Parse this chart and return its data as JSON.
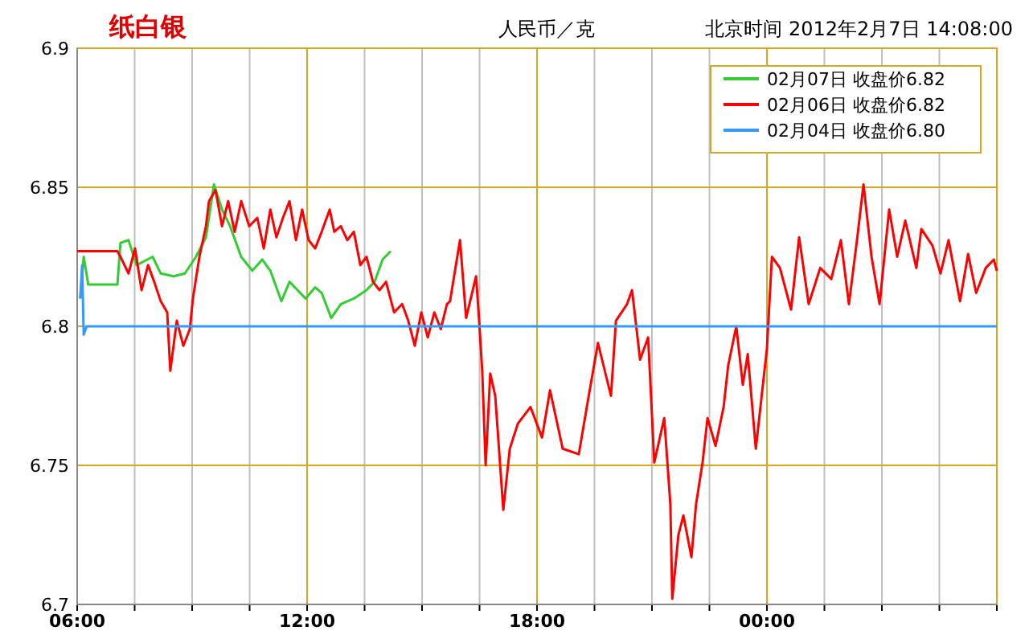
{
  "chart_data": {
    "type": "line",
    "title": "纸白银",
    "subtitle": "人民币／克",
    "annotations": [
      "北京时间 2012年2月7日 14:08:00"
    ],
    "xlim": [
      6,
      30
    ],
    "ylim": [
      6.7,
      6.9
    ],
    "xticks": [
      {
        "value": 6,
        "label": "06:00"
      },
      {
        "value": 7.5,
        "label": null
      },
      {
        "value": 9,
        "label": null
      },
      {
        "value": 10.5,
        "label": null
      },
      {
        "value": 12,
        "label": "12:00"
      },
      {
        "value": 13.5,
        "label": null
      },
      {
        "value": 15,
        "label": null
      },
      {
        "value": 16.5,
        "label": null
      },
      {
        "value": 18,
        "label": "18:00"
      },
      {
        "value": 19.5,
        "label": null
      },
      {
        "value": 21,
        "label": null
      },
      {
        "value": 22.5,
        "label": null
      },
      {
        "value": 24,
        "label": "00:00"
      },
      {
        "value": 25.5,
        "label": null
      },
      {
        "value": 27,
        "label": null
      },
      {
        "value": 28.5,
        "label": null
      },
      {
        "value": 30,
        "label": null
      }
    ],
    "yticks": [
      6.7,
      6.75,
      6.8,
      6.85,
      6.9
    ],
    "grid": true,
    "legend": "top right",
    "marker": "none",
    "line_style": "solid",
    "series": [
      {
        "name": "02月07日 收盘价6.82",
        "color": "#33cc33",
        "x": [
          6.08,
          6.17,
          6.29,
          7.05,
          7.13,
          7.34,
          7.55,
          7.97,
          8.18,
          8.52,
          8.81,
          9.1,
          9.36,
          9.57,
          9.78,
          9.99,
          10.28,
          10.57,
          10.83,
          11.04,
          11.33,
          11.54,
          11.75,
          11.96,
          12.21,
          12.38,
          12.63,
          12.88,
          13.22,
          13.55,
          13.76,
          13.97,
          14.18
        ],
        "values": [
          6.81,
          6.825,
          6.815,
          6.815,
          6.83,
          6.831,
          6.822,
          6.825,
          6.819,
          6.818,
          6.819,
          6.825,
          6.832,
          6.851,
          6.842,
          6.836,
          6.825,
          6.82,
          6.824,
          6.82,
          6.809,
          6.816,
          6.813,
          6.81,
          6.814,
          6.812,
          6.803,
          6.808,
          6.81,
          6.813,
          6.816,
          6.824,
          6.827
        ]
      },
      {
        "name": "02月06日 收盘价6.82",
        "color": "#ff0000",
        "x": [
          6.0,
          7.05,
          7.13,
          7.34,
          7.51,
          7.68,
          7.85,
          8.01,
          8.18,
          8.35,
          8.43,
          8.6,
          8.77,
          8.94,
          9.02,
          9.19,
          9.36,
          9.44,
          9.61,
          9.78,
          9.94,
          10.11,
          10.28,
          10.49,
          10.7,
          10.87,
          11.04,
          11.2,
          11.37,
          11.54,
          11.71,
          11.87,
          12.04,
          12.21,
          12.38,
          12.59,
          12.71,
          12.88,
          13.05,
          13.22,
          13.39,
          13.55,
          13.72,
          13.89,
          14.06,
          14.27,
          14.48,
          14.64,
          14.81,
          14.98,
          15.15,
          15.32,
          15.49,
          15.65,
          15.73,
          15.99,
          16.15,
          16.41,
          16.49,
          16.57,
          16.66,
          16.78,
          16.91,
          17.12,
          17.29,
          17.5,
          17.83,
          18.13,
          18.34,
          18.67,
          19.09,
          19.3,
          19.59,
          19.93,
          20.06,
          20.35,
          20.48,
          20.69,
          20.9,
          21.06,
          21.32,
          21.48,
          21.53,
          21.69,
          21.82,
          22.03,
          22.15,
          22.32,
          22.45,
          22.66,
          22.87,
          22.99,
          23.2,
          23.37,
          23.5,
          23.71,
          24.0,
          24.13,
          24.34,
          24.63,
          24.84,
          25.09,
          25.39,
          25.68,
          25.93,
          26.14,
          26.35,
          26.52,
          26.73,
          26.94,
          27.19,
          27.4,
          27.61,
          27.9,
          28.03,
          28.32,
          28.53,
          28.74,
          29.04,
          29.25,
          29.46,
          29.71,
          29.92,
          30.0
        ],
        "values": [
          6.827,
          6.827,
          6.825,
          6.819,
          6.828,
          6.813,
          6.822,
          6.816,
          6.809,
          6.805,
          6.784,
          6.802,
          6.793,
          6.799,
          6.81,
          6.825,
          6.836,
          6.845,
          6.849,
          6.836,
          6.845,
          6.834,
          6.845,
          6.836,
          6.839,
          6.828,
          6.842,
          6.832,
          6.839,
          6.845,
          6.831,
          6.842,
          6.831,
          6.828,
          6.834,
          6.842,
          6.834,
          6.836,
          6.831,
          6.834,
          6.822,
          6.825,
          6.816,
          6.813,
          6.816,
          6.805,
          6.808,
          6.802,
          6.793,
          6.805,
          6.796,
          6.805,
          6.799,
          6.808,
          6.809,
          6.831,
          6.803,
          6.818,
          6.802,
          6.784,
          6.75,
          6.783,
          6.775,
          6.734,
          6.756,
          6.765,
          6.771,
          6.76,
          6.777,
          6.756,
          6.754,
          6.771,
          6.794,
          6.775,
          6.802,
          6.808,
          6.813,
          6.788,
          6.796,
          6.751,
          6.767,
          6.736,
          6.702,
          6.725,
          6.732,
          6.717,
          6.736,
          6.751,
          6.767,
          6.757,
          6.771,
          6.786,
          6.8,
          6.779,
          6.79,
          6.756,
          6.792,
          6.825,
          6.821,
          6.806,
          6.832,
          6.808,
          6.821,
          6.817,
          6.831,
          6.808,
          6.831,
          6.851,
          6.825,
          6.808,
          6.842,
          6.825,
          6.838,
          6.821,
          6.835,
          6.829,
          6.819,
          6.831,
          6.809,
          6.826,
          6.812,
          6.821,
          6.824,
          6.82
        ]
      },
      {
        "name": "02月04日 收盘价6.80",
        "color": "#3399ff",
        "x": [
          6.08,
          6.13,
          6.17,
          6.25,
          30
        ],
        "values": [
          6.81,
          6.822,
          6.797,
          6.8,
          6.8
        ]
      }
    ]
  }
}
